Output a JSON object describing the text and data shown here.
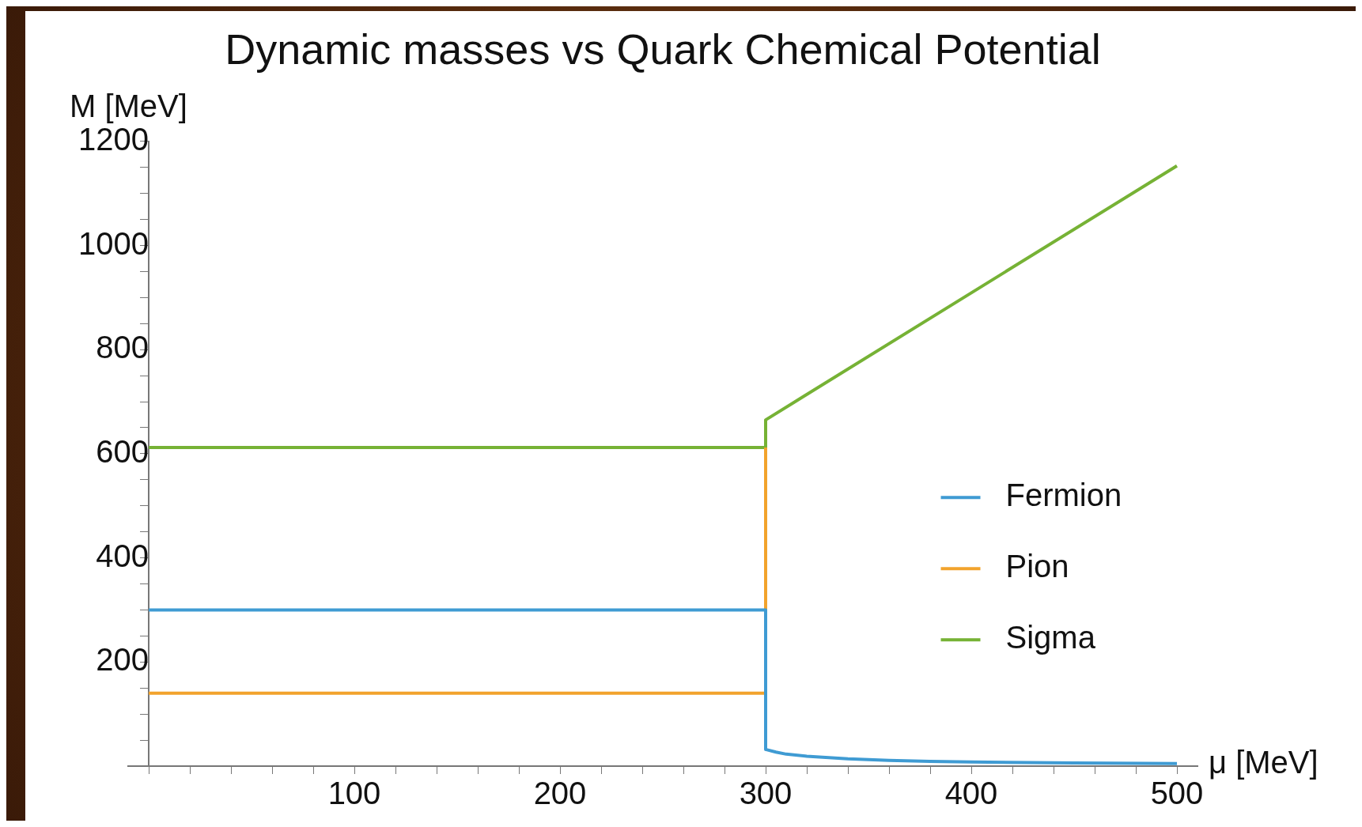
{
  "chart_data": {
    "type": "line",
    "title": "Dynamic masses vs Quark Chemical Potential",
    "xlabel": "μ [MeV]",
    "ylabel": "M [MeV]",
    "xlim": [
      -10,
      510
    ],
    "ylim": [
      0,
      1200
    ],
    "xticks": [
      {
        "value": 0,
        "label": null
      },
      {
        "value": 20,
        "label": null
      },
      {
        "value": 40,
        "label": null
      },
      {
        "value": 60,
        "label": null
      },
      {
        "value": 80,
        "label": null
      },
      100,
      {
        "value": 120,
        "label": null
      },
      {
        "value": 140,
        "label": null
      },
      {
        "value": 160,
        "label": null
      },
      {
        "value": 180,
        "label": null
      },
      200,
      {
        "value": 220,
        "label": null
      },
      {
        "value": 240,
        "label": null
      },
      {
        "value": 260,
        "label": null
      },
      {
        "value": 280,
        "label": null
      },
      300,
      {
        "value": 320,
        "label": null
      },
      {
        "value": 340,
        "label": null
      },
      {
        "value": 360,
        "label": null
      },
      {
        "value": 380,
        "label": null
      },
      400,
      {
        "value": 420,
        "label": null
      },
      {
        "value": 440,
        "label": null
      },
      {
        "value": 460,
        "label": null
      },
      {
        "value": 480,
        "label": null
      },
      500
    ],
    "yticks": [
      {
        "value": 50,
        "label": null
      },
      {
        "value": 100,
        "label": null
      },
      {
        "value": 150,
        "label": null
      },
      200,
      {
        "value": 250,
        "label": null
      },
      {
        "value": 300,
        "label": null
      },
      {
        "value": 350,
        "label": null
      },
      400,
      {
        "value": 450,
        "label": null
      },
      {
        "value": 500,
        "label": null
      },
      {
        "value": 550,
        "label": null
      },
      600,
      {
        "value": 650,
        "label": null
      },
      {
        "value": 700,
        "label": null
      },
      {
        "value": 750,
        "label": null
      },
      800,
      {
        "value": 850,
        "label": null
      },
      {
        "value": 900,
        "label": null
      },
      {
        "value": 950,
        "label": null
      },
      1000,
      {
        "value": 1050,
        "label": null
      },
      {
        "value": 1100,
        "label": null
      },
      {
        "value": 1150,
        "label": null
      },
      1200
    ],
    "legend": "right",
    "series": [
      {
        "name": "Fermion",
        "color": "#3f9bd3",
        "type": "line",
        "x": [
          0,
          300,
          300,
          305,
          310,
          320,
          340,
          360,
          380,
          400,
          450,
          500
        ],
        "values": [
          300,
          300,
          32,
          27,
          23,
          19,
          14,
          11,
          9,
          8,
          6,
          5
        ]
      },
      {
        "name": "Pion",
        "color": "#f2a32c",
        "type": "line",
        "x": [
          0,
          300,
          300
        ],
        "values": [
          140,
          140,
          612
        ]
      },
      {
        "name": "Sigma",
        "color": "#76b235",
        "type": "line",
        "x": [
          0,
          300,
          300,
          500
        ],
        "values": [
          612,
          612,
          665,
          1153
        ]
      }
    ]
  }
}
